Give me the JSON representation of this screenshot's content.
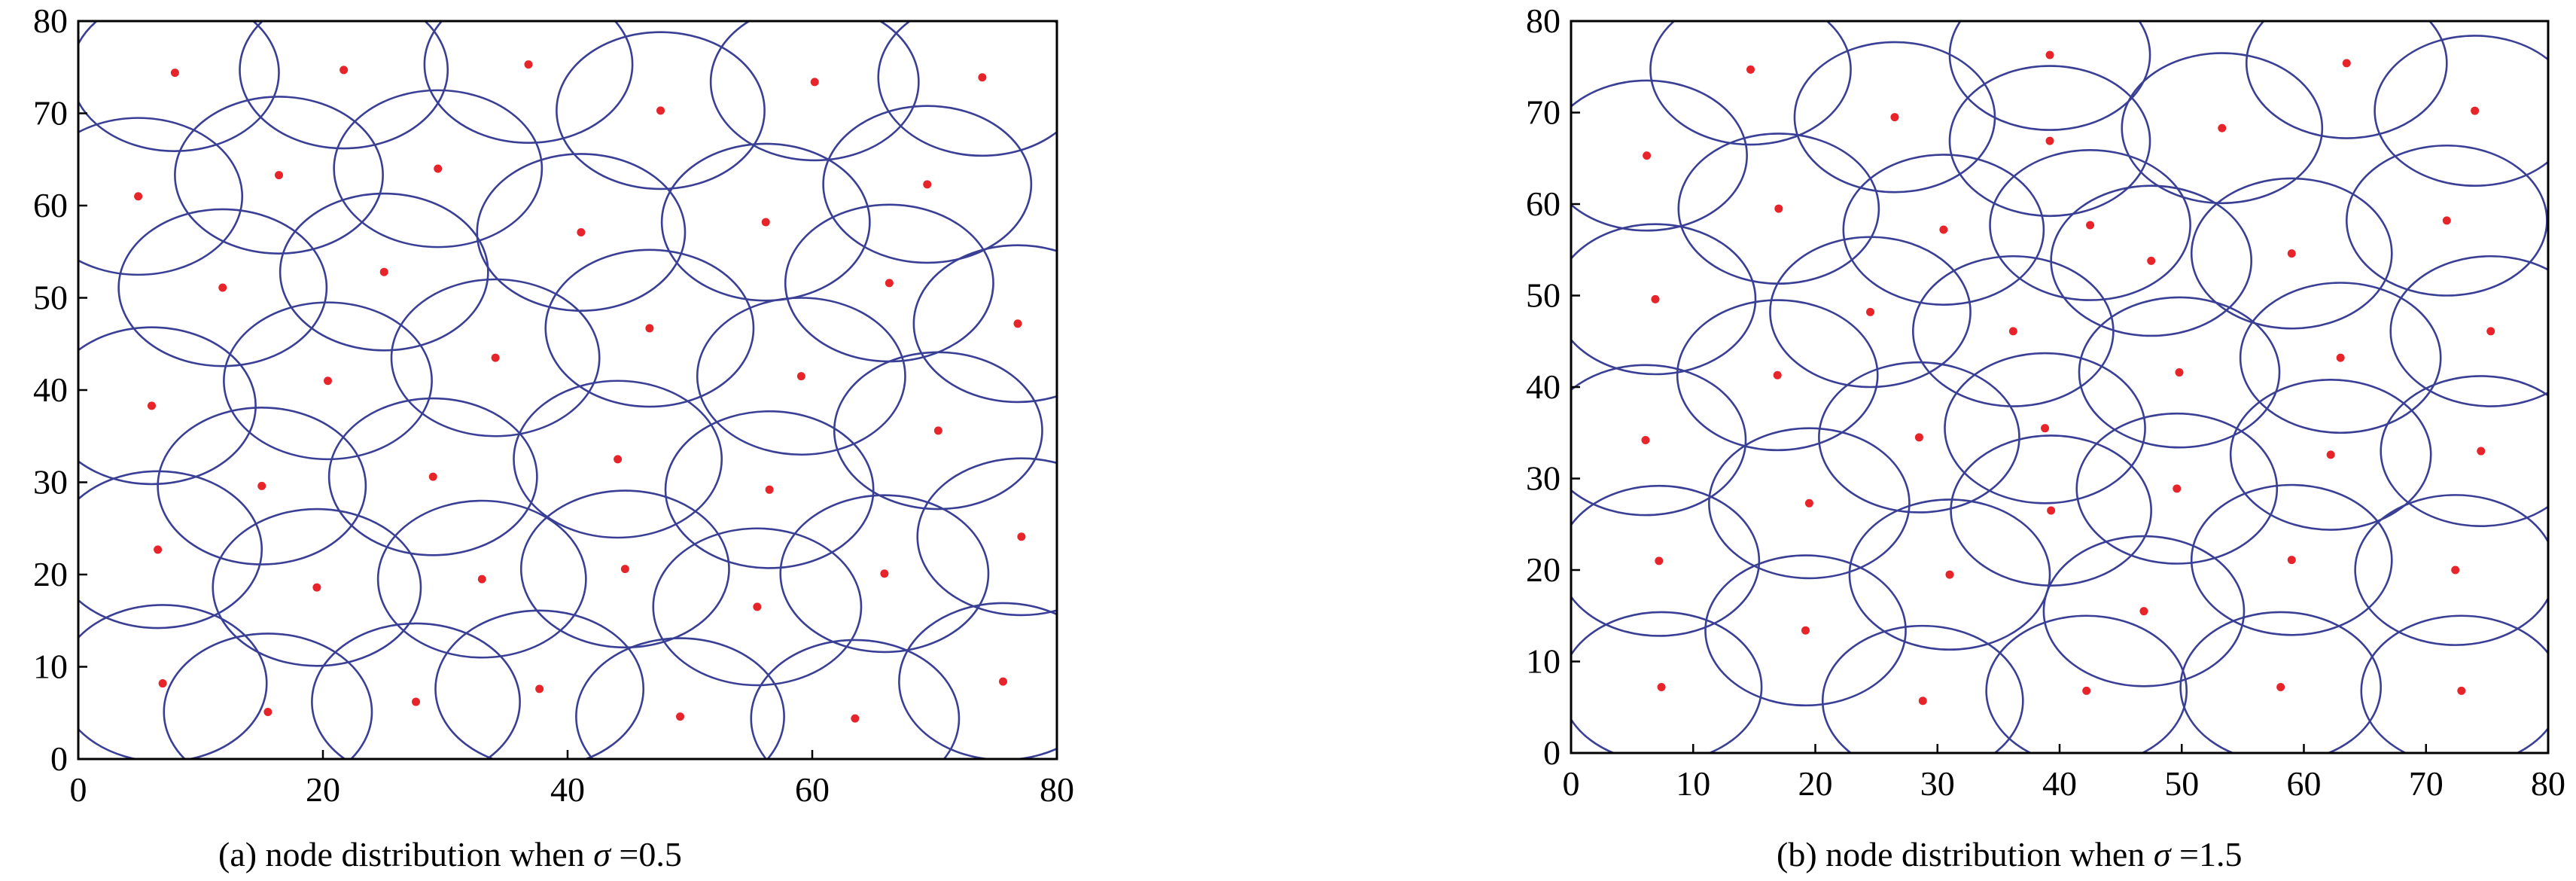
{
  "colors": {
    "circle": "#3a3f96",
    "node": "#e8242b",
    "axis": "#000000"
  },
  "charts": [
    {
      "caption": {
        "prefix": "(a) node distribution when ",
        "symbol": "σ",
        "suffix": " =0.5"
      },
      "chart_data": {
        "type": "scatter",
        "xlim": [
          0,
          80
        ],
        "ylim": [
          0,
          80
        ],
        "xticks": [
          0,
          20,
          40,
          60,
          80
        ],
        "yticks": [
          0,
          10,
          20,
          30,
          40,
          50,
          60,
          70,
          80
        ],
        "circle_radius": 8.5,
        "points": [
          [
            7.9,
            74.4
          ],
          [
            21.7,
            74.7
          ],
          [
            36.8,
            75.3
          ],
          [
            47.6,
            70.3
          ],
          [
            60.2,
            73.4
          ],
          [
            73.9,
            73.9
          ],
          [
            4.9,
            61.0
          ],
          [
            16.4,
            63.3
          ],
          [
            29.4,
            64.0
          ],
          [
            41.1,
            57.1
          ],
          [
            56.2,
            58.2
          ],
          [
            69.4,
            62.3
          ],
          [
            11.8,
            51.1
          ],
          [
            25.0,
            52.8
          ],
          [
            46.7,
            46.7
          ],
          [
            66.3,
            51.6
          ],
          [
            76.8,
            47.2
          ],
          [
            34.1,
            43.5
          ],
          [
            20.4,
            41.0
          ],
          [
            59.1,
            41.5
          ],
          [
            6.0,
            38.3
          ],
          [
            44.1,
            32.5
          ],
          [
            70.3,
            35.6
          ],
          [
            15.0,
            29.6
          ],
          [
            29.0,
            30.6
          ],
          [
            56.5,
            29.2
          ],
          [
            6.5,
            22.7
          ],
          [
            19.5,
            18.6
          ],
          [
            33.0,
            19.5
          ],
          [
            44.7,
            20.6
          ],
          [
            55.5,
            16.5
          ],
          [
            65.9,
            20.1
          ],
          [
            77.1,
            24.1
          ],
          [
            6.9,
            8.2
          ],
          [
            15.5,
            5.1
          ],
          [
            27.6,
            6.2
          ],
          [
            37.7,
            7.6
          ],
          [
            49.2,
            4.6
          ],
          [
            63.5,
            4.4
          ],
          [
            75.6,
            8.4
          ]
        ]
      }
    },
    {
      "caption": {
        "prefix": "(b) node distribution when ",
        "symbol": "σ",
        "suffix": " =1.5"
      },
      "chart_data": {
        "type": "scatter",
        "xlim": [
          0,
          80
        ],
        "ylim": [
          0,
          80
        ],
        "xticks": [
          0,
          10,
          20,
          30,
          40,
          50,
          60,
          70,
          80
        ],
        "yticks": [
          0,
          10,
          20,
          30,
          40,
          50,
          60,
          70,
          80
        ],
        "circle_radius": 8.2,
        "points": [
          [
            14.7,
            74.7
          ],
          [
            39.2,
            76.3
          ],
          [
            63.5,
            75.4
          ],
          [
            26.5,
            69.5
          ],
          [
            53.3,
            68.3
          ],
          [
            74.0,
            70.2
          ],
          [
            6.2,
            65.3
          ],
          [
            39.2,
            66.9
          ],
          [
            17.0,
            59.5
          ],
          [
            30.5,
            57.2
          ],
          [
            42.5,
            57.7
          ],
          [
            71.7,
            58.2
          ],
          [
            47.5,
            53.8
          ],
          [
            59.0,
            54.6
          ],
          [
            6.9,
            49.6
          ],
          [
            24.5,
            48.2
          ],
          [
            36.2,
            46.1
          ],
          [
            75.3,
            46.1
          ],
          [
            16.9,
            41.3
          ],
          [
            49.8,
            41.6
          ],
          [
            63.0,
            43.2
          ],
          [
            38.8,
            35.5
          ],
          [
            6.1,
            34.2
          ],
          [
            28.5,
            34.5
          ],
          [
            62.2,
            32.6
          ],
          [
            74.5,
            33.0
          ],
          [
            19.5,
            27.3
          ],
          [
            39.3,
            26.5
          ],
          [
            49.6,
            28.9
          ],
          [
            7.2,
            21.0
          ],
          [
            31.0,
            19.5
          ],
          [
            46.9,
            15.5
          ],
          [
            59.0,
            21.1
          ],
          [
            72.4,
            20.0
          ],
          [
            19.2,
            13.4
          ],
          [
            7.4,
            7.2
          ],
          [
            28.8,
            5.7
          ],
          [
            42.2,
            6.8
          ],
          [
            58.1,
            7.2
          ],
          [
            72.9,
            6.8
          ]
        ]
      }
    }
  ]
}
